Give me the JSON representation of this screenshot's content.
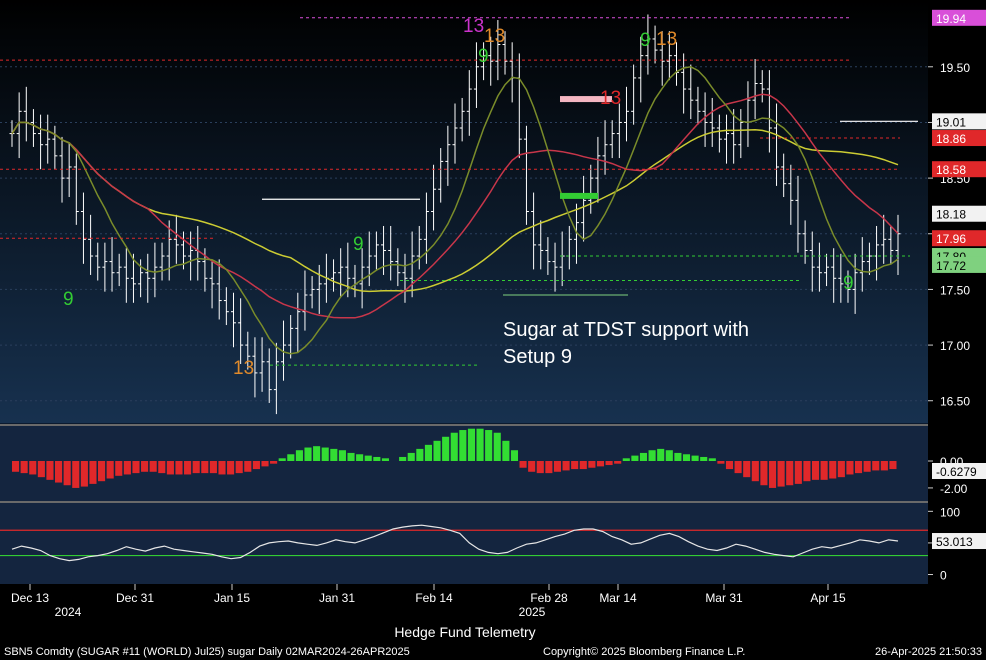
{
  "chart_data": [
    {
      "type": "candlestick",
      "panel": "price",
      "ylim": [
        16.3,
        20.1
      ],
      "y_ticks": [
        16.5,
        17.0,
        17.5,
        18.0,
        18.5,
        19.0,
        19.5
      ],
      "y_tick_labels": [
        "16.50",
        "17.00",
        "17.50",
        "18.00",
        "18.50",
        "19.00",
        "19.50"
      ],
      "price_tags": [
        {
          "label": "19.94",
          "value": 19.94,
          "color": "#d94fd9",
          "text_color": "#ffffff"
        },
        {
          "label": "19.01",
          "value": 19.01,
          "color": "#f2f2f2",
          "text_color": "#000000"
        },
        {
          "label": "18.86",
          "value": 18.86,
          "color": "#e0282a",
          "text_color": "#ffffff"
        },
        {
          "label": "18.58",
          "value": 18.58,
          "color": "#e0282a",
          "text_color": "#ffffff"
        },
        {
          "label": "18.18",
          "value": 18.18,
          "color": "#f2f2f2",
          "text_color": "#000000"
        },
        {
          "label": "17.96",
          "value": 17.96,
          "color": "#e0282a",
          "text_color": "#ffffff"
        },
        {
          "label": "17.80",
          "value": 17.8,
          "color": "#7fd17f",
          "text_color": "#000000"
        },
        {
          "label": "17.72",
          "value": 17.72,
          "color": "#7fd17f",
          "text_color": "#000000"
        }
      ],
      "closes": [
        18.9,
        19.1,
        19.0,
        18.9,
        18.8,
        18.85,
        18.7,
        18.5,
        18.6,
        18.2,
        17.95,
        17.8,
        17.7,
        17.75,
        17.65,
        17.7,
        17.6,
        17.55,
        17.65,
        17.6,
        17.7,
        17.8,
        17.95,
        17.9,
        17.8,
        17.85,
        17.75,
        17.6,
        17.55,
        17.4,
        17.3,
        17.2,
        17.0,
        16.9,
        16.75,
        16.85,
        16.6,
        16.85,
        17.0,
        17.15,
        17.3,
        17.45,
        17.5,
        17.55,
        17.6,
        17.65,
        17.7,
        17.6,
        17.55,
        17.7,
        17.8,
        17.9,
        17.85,
        17.75,
        17.65,
        17.6,
        17.8,
        17.95,
        18.2,
        18.4,
        18.65,
        18.8,
        18.95,
        19.1,
        19.3,
        19.5,
        19.6,
        19.55,
        19.7,
        19.55,
        19.4,
        18.85,
        18.2,
        17.9,
        17.85,
        17.75,
        17.7,
        17.8,
        17.95,
        18.1,
        18.3,
        18.5,
        18.7,
        18.8,
        18.9,
        19.0,
        19.1,
        19.4,
        19.6,
        19.75,
        19.65,
        19.55,
        19.6,
        19.45,
        19.3,
        19.2,
        19.1,
        19.0,
        18.95,
        18.85,
        18.9,
        18.8,
        19.0,
        19.2,
        19.35,
        19.3,
        18.95,
        18.6,
        18.45,
        18.3,
        18.0,
        17.85,
        17.7,
        17.65,
        17.7,
        17.6,
        17.55,
        17.5,
        17.65,
        17.75,
        17.8,
        17.9,
        17.95,
        17.85,
        18.0
      ],
      "indicators": [
        {
          "name": "",
          "color": "#cccc33"
        },
        {
          "name": "",
          "color": "#c8364a"
        },
        {
          "name": "",
          "color": "#7a8c2a"
        }
      ],
      "annotations": [
        {
          "text": "Sugar at TDST support with",
          "color": "#ffffff"
        },
        {
          "text": "Setup 9",
          "color": "#ffffff"
        },
        {
          "text": "9",
          "color": "#33cc33"
        },
        {
          "text": "9",
          "color": "#33cc33"
        },
        {
          "text": "9",
          "color": "#33cc33"
        },
        {
          "text": "9",
          "color": "#33cc33"
        },
        {
          "text": "9",
          "color": "#33cc33"
        },
        {
          "text": "13",
          "color": "#e08a2a"
        },
        {
          "text": "13",
          "color": "#e08a2a"
        },
        {
          "text": "13",
          "color": "#e08a2a"
        },
        {
          "text": "13",
          "color": "#cc33cc"
        },
        {
          "text": "13",
          "color": "#e0282a"
        }
      ]
    },
    {
      "type": "bar",
      "panel": "histogram",
      "y_ticks": [
        0.0,
        -2.0
      ],
      "y_tick_labels": [
        "0.00",
        "-2.00"
      ],
      "current_label": "-0.6279",
      "values": [
        -0.8,
        -0.9,
        -1.0,
        -1.2,
        -1.4,
        -1.6,
        -1.8,
        -2.0,
        -1.9,
        -1.7,
        -1.5,
        -1.3,
        -1.1,
        -1.0,
        -0.9,
        -0.8,
        -0.8,
        -0.9,
        -1.0,
        -1.0,
        -1.0,
        -0.9,
        -0.9,
        -0.9,
        -1.0,
        -1.0,
        -0.9,
        -0.8,
        -0.6,
        -0.4,
        -0.2,
        0.2,
        0.5,
        0.8,
        1.0,
        1.1,
        1.0,
        0.9,
        0.8,
        0.6,
        0.5,
        0.4,
        0.3,
        0.2,
        0.0,
        0.3,
        0.6,
        0.9,
        1.2,
        1.5,
        1.8,
        2.1,
        2.3,
        2.4,
        2.4,
        2.3,
        2.1,
        1.5,
        0.8,
        -0.5,
        -0.8,
        -0.9,
        -0.9,
        -0.8,
        -0.7,
        -0.6,
        -0.6,
        -0.5,
        -0.4,
        -0.3,
        -0.2,
        0.2,
        0.4,
        0.6,
        0.8,
        0.9,
        0.8,
        0.6,
        0.5,
        0.4,
        0.3,
        0.2,
        -0.2,
        -0.6,
        -0.9,
        -1.2,
        -1.5,
        -1.8,
        -2.0,
        -1.9,
        -1.8,
        -1.7,
        -1.5,
        -1.4,
        -1.4,
        -1.3,
        -1.2,
        -1.0,
        -0.9,
        -0.8,
        -0.7,
        -0.7,
        -0.6
      ],
      "positive_color": "#33dd33",
      "negative_color": "#e0282a"
    },
    {
      "type": "line",
      "panel": "oscillator",
      "ylim": [
        -15,
        110
      ],
      "y_ticks": [
        100,
        50,
        0
      ],
      "y_tick_labels": [
        "100",
        "50",
        "0"
      ],
      "current_label": "53.013",
      "upper_band": 70,
      "lower_band": 30,
      "values": [
        40,
        45,
        42,
        38,
        30,
        25,
        22,
        24,
        28,
        30,
        33,
        38,
        44,
        40,
        37,
        42,
        45,
        40,
        38,
        36,
        34,
        32,
        28,
        25,
        27,
        35,
        45,
        50,
        52,
        53,
        50,
        48,
        46,
        50,
        55,
        52,
        50,
        55,
        60,
        66,
        72,
        75,
        77,
        78,
        76,
        74,
        70,
        65,
        50,
        40,
        35,
        33,
        35,
        42,
        48,
        50,
        55,
        60,
        64,
        70,
        72,
        72,
        68,
        60,
        55,
        48,
        50,
        56,
        62,
        65,
        60,
        52,
        45,
        40,
        38,
        42,
        48,
        45,
        40,
        35,
        32,
        30,
        28,
        34,
        40,
        44,
        42,
        46,
        50,
        55,
        53,
        50,
        55,
        53
      ],
      "line_color": "#e6e6e6"
    }
  ],
  "x_axis": {
    "tick_labels": [
      "Dec 13",
      "Dec 31",
      "Jan 15",
      "Jan 31",
      "Feb 14",
      "Feb 28",
      "Mar 14",
      "Mar 31",
      "Apr 15"
    ],
    "year_labels": [
      "2024",
      "2025"
    ]
  },
  "footer": {
    "center": "Hedge Fund Telemetry",
    "left": "SBN5 Comdty (SUGAR #11 (WORLD) Jul25) sugar  Daily 02MAR2024-26APR2025",
    "middle": "Copyright© 2025 Bloomberg Finance L.P.",
    "right": "26-Apr-2025 21:50:33"
  }
}
